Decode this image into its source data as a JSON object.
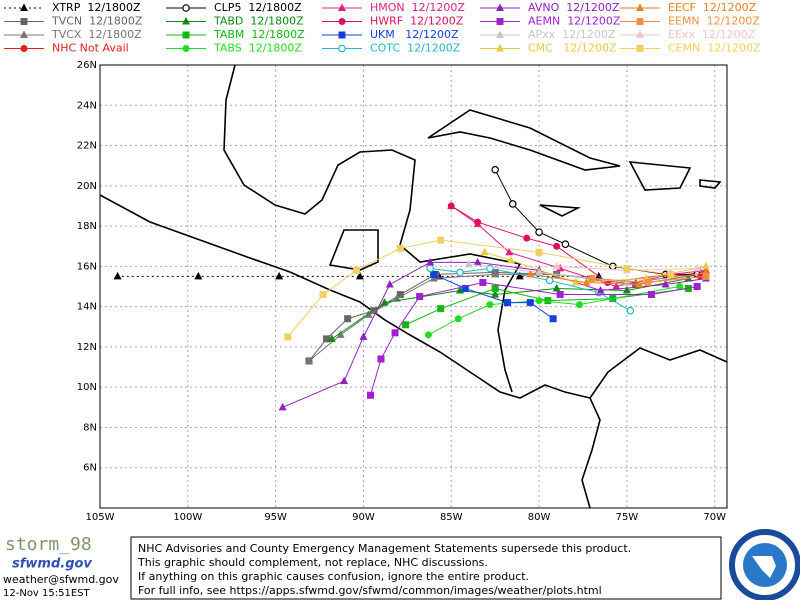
{
  "chart_data": {
    "type": "line",
    "xlim": [
      -105,
      -69.3
    ],
    "ylim": [
      4,
      26
    ],
    "grid": true,
    "xticks": [
      {
        "value": -105,
        "label": "105W"
      },
      {
        "value": -100,
        "label": "100W"
      },
      {
        "value": -95,
        "label": "95W"
      },
      {
        "value": -90,
        "label": "90W"
      },
      {
        "value": -85,
        "label": "85W"
      },
      {
        "value": -80,
        "label": "80W"
      },
      {
        "value": -75,
        "label": "75W"
      },
      {
        "value": -70,
        "label": "70W"
      }
    ],
    "yticks": [
      {
        "value": 6,
        "label": "6N"
      },
      {
        "value": 8,
        "label": "8N"
      },
      {
        "value": 10,
        "label": "10N"
      },
      {
        "value": 12,
        "label": "12N"
      },
      {
        "value": 14,
        "label": "14N"
      },
      {
        "value": 16,
        "label": "16N"
      },
      {
        "value": 18,
        "label": "18N"
      },
      {
        "value": 20,
        "label": "20N"
      },
      {
        "value": 22,
        "label": "22N"
      },
      {
        "value": 24,
        "label": "24N"
      },
      {
        "value": 26,
        "label": "26N"
      }
    ],
    "series": [
      {
        "name": "XTRP  12/1800Z",
        "color": "#000000",
        "marker": "triangle",
        "line_style": "dotted",
        "x": [
          -76.6,
          -81.1,
          -85.7,
          -90.2,
          -94.8,
          -99.4,
          -104
        ],
        "values": [
          15.5,
          15.5,
          15.5,
          15.5,
          15.5,
          15.5,
          15.5
        ]
      },
      {
        "name": "TVCN  12/1800Z",
        "color": "#666666",
        "marker": "square",
        "x": [
          -70.8,
          -74.5,
          -79.0,
          -82.5,
          -85.9,
          -87.9,
          -89.4,
          -90.9,
          -92.1,
          -93.1
        ],
        "values": [
          15.6,
          15.1,
          15.6,
          15.7,
          15.6,
          14.6,
          13.8,
          13.4,
          12.4,
          11.3
        ]
      },
      {
        "name": "TVCX  12/1800Z",
        "color": "#777777",
        "marker": "triangle",
        "x": [
          -70.8,
          -74.5,
          -79.0,
          -82.5,
          -86.0,
          -88.1,
          -89.7,
          -91.3,
          -93.1
        ],
        "values": [
          15.7,
          15.2,
          15.6,
          15.6,
          15.4,
          14.4,
          13.6,
          12.6,
          11.3
        ]
      },
      {
        "name": "NHC Not Avail",
        "color": "#e02020",
        "marker": "circle",
        "x": [],
        "values": []
      },
      {
        "name": "CLP5  12/1800Z",
        "color": "#000000",
        "marker": "open-circle",
        "x": [
          -71.0,
          -72.8,
          -75.8,
          -78.5,
          -80.0,
          -81.5,
          -82.5
        ],
        "values": [
          15.6,
          15.6,
          16.0,
          17.1,
          17.7,
          19.1,
          20.8
        ]
      },
      {
        "name": "TABD  12/1800Z",
        "color": "#108a10",
        "marker": "triangle",
        "x": [
          -71.5,
          -75.0,
          -79.0,
          -82.5,
          -84.5,
          -88.8,
          -91.8
        ],
        "values": [
          15.4,
          14.8,
          14.9,
          14.6,
          14.8,
          14.2,
          12.4
        ]
      },
      {
        "name": "TABM  12/1800Z",
        "color": "#10b810",
        "marker": "square",
        "x": [
          -71.5,
          -75.8,
          -79.5,
          -82.5,
          -85.6,
          -87.6
        ],
        "values": [
          14.9,
          14.4,
          14.3,
          14.9,
          13.9,
          13.1
        ]
      },
      {
        "name": "TABS  12/1800Z",
        "color": "#20dd20",
        "marker": "circle",
        "x": [
          -72.0,
          -77.7,
          -80.0,
          -82.8,
          -84.6,
          -86.3
        ],
        "values": [
          15.0,
          14.1,
          14.3,
          14.1,
          13.4,
          12.6
        ]
      },
      {
        "name": "HMON  12/1200Z",
        "color": "#e0208a",
        "marker": "triangle",
        "x": [
          -70.5,
          -72.5,
          -75.6,
          -78.8,
          -81.7,
          -83.5,
          -85.0
        ],
        "values": [
          15.8,
          15.6,
          15.0,
          15.9,
          16.7,
          18.1,
          19.0
        ]
      },
      {
        "name": "HWRF  12/1200Z",
        "color": "#e01060",
        "marker": "circle",
        "x": [
          -70.8,
          -72.6,
          -76.1,
          -79.0,
          -80.7,
          -83.5,
          -85.0
        ],
        "values": [
          15.5,
          15.6,
          15.2,
          17.0,
          17.4,
          18.2,
          19.0
        ]
      },
      {
        "name": "UKM   12/1200Z",
        "color": "#1040e0",
        "marker": "square",
        "x": [
          -79.2,
          -80.5,
          -81.8,
          -84.2,
          -86.0
        ],
        "values": [
          13.4,
          14.2,
          14.2,
          14.9,
          15.6
        ]
      },
      {
        "name": "COTC  12/1200Z",
        "color": "#20b8c8",
        "marker": "open-circle",
        "x": [
          -74.8,
          -76.6,
          -79.4,
          -82.8,
          -84.5,
          -86.2
        ],
        "values": [
          13.8,
          14.7,
          15.3,
          15.9,
          15.7,
          15.9
        ]
      },
      {
        "name": "AVNO  12/1200Z",
        "color": "#9020c0",
        "marker": "triangle",
        "x": [
          -70.5,
          -72.8,
          -76.5,
          -80.0,
          -83.5,
          -86.2,
          -88.5,
          -90.0,
          -91.1,
          -94.6
        ],
        "values": [
          15.4,
          15.1,
          14.8,
          15.8,
          16.2,
          16.2,
          15.1,
          12.5,
          10.3,
          9.0
        ]
      },
      {
        "name": "AEMN  12/1200Z",
        "color": "#a020d0",
        "marker": "square",
        "x": [
          -71.0,
          -73.6,
          -78.8,
          -83.2,
          -86.8,
          -88.2,
          -89.0,
          -89.6
        ],
        "values": [
          15.0,
          14.6,
          14.6,
          15.2,
          14.5,
          12.7,
          11.4,
          9.6
        ]
      },
      {
        "name": "APxx  12/1200Z",
        "color": "#c8c8c8",
        "marker": "triangle",
        "x": [
          -75.0,
          -80.0,
          -84.0
        ],
        "values": [
          15.2,
          15.7,
          16.1
        ]
      },
      {
        "name": "CMC   12/1200Z",
        "color": "#e8cc40",
        "marker": "triangle",
        "x": [
          -70.5,
          -73.9,
          -77.9,
          -81.6,
          -83.1
        ],
        "values": [
          16.0,
          15.4,
          15.2,
          16.3,
          16.7
        ]
      },
      {
        "name": "EECF  12/1200Z",
        "color": "#f08020",
        "marker": "triangle",
        "x": [
          -70.5,
          -74.3,
          -77.3,
          -80.5
        ],
        "values": [
          15.7,
          15.1,
          15.2,
          15.6
        ]
      },
      {
        "name": "EEMN  12/1200Z",
        "color": "#f09040",
        "marker": "square",
        "x": [
          -70.5,
          -73.8,
          -77.0
        ],
        "values": [
          15.5,
          15.2,
          15.4
        ]
      },
      {
        "name": "EExx  12/1200Z",
        "color": "#f4c4c4",
        "marker": "triangle",
        "x": [
          -71.0,
          -75.0,
          -79.0
        ],
        "values": [
          15.9,
          15.8,
          16.0
        ]
      },
      {
        "name": "CEMN  12/1200Z",
        "color": "#f0d060",
        "marker": "square",
        "x": [
          -72.5,
          -75.0,
          -80.0,
          -85.6,
          -87.9,
          -90.4,
          -92.3,
          -94.3
        ],
        "values": [
          15.6,
          15.9,
          16.7,
          17.3,
          16.9,
          15.8,
          14.6,
          12.5
        ]
      }
    ]
  },
  "footer": {
    "logo": "storm_98",
    "site": "sfwmd.gov",
    "email": "weather@sfwmd.gov",
    "timestamp": "12-Nov 15:51EST",
    "notice": [
      "NHC Advisories and County Emergency Management Statements supersede this product.",
      "This graphic should complement, not replace, NHC discussions.",
      "If anything on this graphic causes confusion, ignore the entire product.",
      "For full info, see  https://apps.sfwmd.gov/sfwmd/common/images/weather/plots.html"
    ]
  }
}
